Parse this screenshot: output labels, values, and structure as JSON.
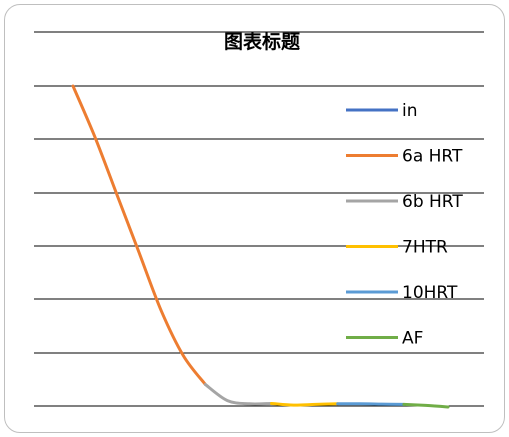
{
  "chart_data": {
    "type": "line",
    "title": "图表标题",
    "xlabel": "",
    "ylabel": "",
    "grid": true,
    "legend_position": "right",
    "series": [
      {
        "name": "in",
        "color": "#4472C4",
        "points": []
      },
      {
        "name": "6a HRT",
        "color": "#ED7D31",
        "points": [
          [
            0,
            100
          ],
          [
            1,
            84
          ],
          [
            2,
            66
          ],
          [
            3,
            48
          ],
          [
            4,
            30
          ],
          [
            5,
            16
          ],
          [
            6,
            7
          ]
        ]
      },
      {
        "name": "6b HRT",
        "color": "#A5A5A5",
        "points": [
          [
            6,
            7
          ],
          [
            7,
            2
          ],
          [
            8,
            1
          ],
          [
            9,
            1.1
          ]
        ]
      },
      {
        "name": " 7HTR",
        "color": "#FFC000",
        "points": [
          [
            9,
            1.1
          ],
          [
            10,
            0.6
          ],
          [
            11,
            0.8
          ],
          [
            12,
            1.0
          ]
        ]
      },
      {
        "name": "10HRT",
        "color": "#5B9BD5",
        "points": [
          [
            12,
            1.0
          ],
          [
            13,
            1.0
          ],
          [
            14,
            0.9
          ],
          [
            15,
            0.8
          ]
        ]
      },
      {
        "name": "AF",
        "color": "#70AD47",
        "points": [
          [
            15,
            0.8
          ],
          [
            16,
            0.5
          ],
          [
            17,
            0
          ]
        ]
      }
    ],
    "xlim": [
      0,
      17
    ],
    "ylim": [
      0,
      100
    ]
  }
}
